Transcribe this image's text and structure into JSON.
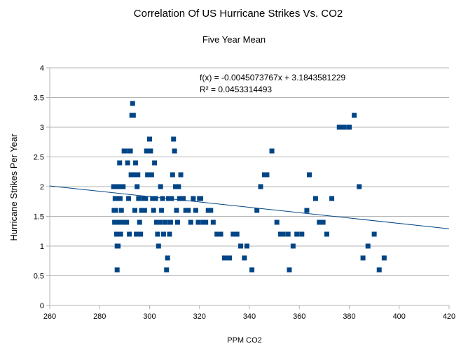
{
  "chart_data": {
    "type": "scatter",
    "title": "Correlation Of US Hurricane Strikes Vs. CO2",
    "subtitle": "Five Year Mean",
    "xlabel": "PPM CO2",
    "ylabel": "Hurricane Strikes Per Year",
    "xlim": [
      260,
      420
    ],
    "ylim": [
      0,
      4
    ],
    "x_ticks": [
      260,
      280,
      300,
      320,
      340,
      360,
      380,
      400,
      420
    ],
    "y_ticks": [
      0,
      0.5,
      1,
      1.5,
      2,
      2.5,
      3,
      3.5,
      4
    ],
    "x_tick_labels": [
      "260",
      "280",
      "300",
      "320",
      "340",
      "360",
      "380",
      "400",
      "420"
    ],
    "y_tick_labels": [
      "0",
      "0.5",
      "1",
      "1.5",
      "2",
      "2.5",
      "3",
      "3.5",
      "4"
    ],
    "grid": "horizontal",
    "legend": "none",
    "marker_color": "#004586",
    "trendline_color": "#004586",
    "trendline": {
      "slope": -0.0045073767,
      "intercept": 3.1843581229
    },
    "equation_label": "f(x) = -0.0045073767x + 3.1843581229",
    "r2_label": "R² = 0.0453314493",
    "points": [
      [
        285.6,
        2.0
      ],
      [
        285.8,
        1.6
      ],
      [
        286.0,
        1.4
      ],
      [
        286.2,
        1.8
      ],
      [
        286.4,
        1.6
      ],
      [
        286.6,
        2.0
      ],
      [
        286.8,
        1.2
      ],
      [
        287.0,
        1.0
      ],
      [
        287.0,
        0.6
      ],
      [
        287.2,
        1.8
      ],
      [
        287.4,
        1.0
      ],
      [
        287.6,
        1.4
      ],
      [
        287.8,
        2.0
      ],
      [
        288.0,
        2.4
      ],
      [
        288.2,
        1.8
      ],
      [
        288.4,
        1.2
      ],
      [
        288.7,
        1.6
      ],
      [
        289.0,
        1.4
      ],
      [
        289.4,
        2.0
      ],
      [
        289.8,
        2.6
      ],
      [
        290.3,
        2.6
      ],
      [
        290.8,
        1.4
      ],
      [
        291.2,
        2.4
      ],
      [
        291.6,
        1.8
      ],
      [
        291.9,
        1.2
      ],
      [
        292.3,
        2.6
      ],
      [
        292.6,
        2.2
      ],
      [
        292.9,
        3.2
      ],
      [
        293.2,
        3.4
      ],
      [
        293.5,
        3.2
      ],
      [
        293.8,
        2.2
      ],
      [
        294.1,
        1.6
      ],
      [
        294.4,
        2.4
      ],
      [
        294.7,
        1.2
      ],
      [
        295.0,
        2.0
      ],
      [
        295.3,
        2.2
      ],
      [
        295.6,
        1.8
      ],
      [
        296.0,
        1.4
      ],
      [
        296.4,
        1.2
      ],
      [
        296.8,
        1.6
      ],
      [
        297.2,
        1.6
      ],
      [
        297.6,
        1.8
      ],
      [
        298.0,
        1.6
      ],
      [
        298.4,
        1.8
      ],
      [
        298.8,
        2.6
      ],
      [
        299.2,
        2.2
      ],
      [
        299.6,
        2.6
      ],
      [
        300.0,
        2.8
      ],
      [
        300.4,
        2.6
      ],
      [
        300.8,
        2.2
      ],
      [
        301.2,
        1.8
      ],
      [
        301.6,
        1.6
      ],
      [
        302.0,
        2.4
      ],
      [
        302.4,
        1.8
      ],
      [
        302.8,
        1.4
      ],
      [
        303.2,
        1.2
      ],
      [
        303.6,
        1.0
      ],
      [
        304.0,
        1.4
      ],
      [
        304.4,
        2.0
      ],
      [
        304.8,
        1.6
      ],
      [
        305.2,
        1.8
      ],
      [
        305.6,
        1.2
      ],
      [
        306.0,
        1.4
      ],
      [
        306.4,
        1.4
      ],
      [
        306.8,
        0.6
      ],
      [
        307.2,
        0.8
      ],
      [
        307.6,
        1.8
      ],
      [
        308.0,
        1.2
      ],
      [
        308.4,
        1.4
      ],
      [
        308.8,
        1.8
      ],
      [
        309.2,
        2.2
      ],
      [
        309.6,
        2.8
      ],
      [
        310.0,
        2.6
      ],
      [
        310.4,
        2.0
      ],
      [
        310.8,
        1.6
      ],
      [
        311.2,
        1.4
      ],
      [
        311.6,
        2.0
      ],
      [
        312.0,
        1.8
      ],
      [
        312.5,
        2.2
      ],
      [
        313.5,
        1.8
      ],
      [
        314.5,
        1.6
      ],
      [
        315.5,
        1.6
      ],
      [
        316.5,
        1.4
      ],
      [
        317.5,
        1.8
      ],
      [
        318.5,
        1.6
      ],
      [
        319.5,
        1.4
      ],
      [
        320.0,
        1.8
      ],
      [
        320.5,
        1.8
      ],
      [
        321.5,
        1.4
      ],
      [
        322.5,
        1.4
      ],
      [
        323.5,
        1.6
      ],
      [
        324.5,
        1.6
      ],
      [
        325.5,
        1.4
      ],
      [
        327.0,
        1.2
      ],
      [
        328.5,
        1.2
      ],
      [
        330.0,
        0.8
      ],
      [
        331.0,
        0.8
      ],
      [
        332.0,
        0.8
      ],
      [
        333.5,
        1.2
      ],
      [
        335.0,
        1.2
      ],
      [
        336.5,
        1.0
      ],
      [
        338.0,
        0.8
      ],
      [
        339.0,
        1.0
      ],
      [
        341.0,
        0.6
      ],
      [
        343.0,
        1.6
      ],
      [
        344.5,
        2.0
      ],
      [
        346.0,
        2.2
      ],
      [
        347.0,
        2.2
      ],
      [
        349.0,
        2.6
      ],
      [
        351.0,
        1.4
      ],
      [
        352.5,
        1.2
      ],
      [
        353.5,
        1.2
      ],
      [
        355.5,
        1.2
      ],
      [
        356.0,
        0.6
      ],
      [
        357.5,
        1.0
      ],
      [
        359.0,
        1.2
      ],
      [
        361.0,
        1.2
      ],
      [
        363.0,
        1.6
      ],
      [
        364.0,
        2.2
      ],
      [
        366.5,
        1.8
      ],
      [
        368.0,
        1.4
      ],
      [
        369.5,
        1.4
      ],
      [
        371.0,
        1.2
      ],
      [
        373.0,
        1.8
      ],
      [
        376.0,
        3.0
      ],
      [
        377.0,
        3.0
      ],
      [
        378.0,
        3.0
      ],
      [
        380.0,
        3.0
      ],
      [
        382.0,
        3.2
      ],
      [
        384.0,
        2.0
      ],
      [
        385.5,
        0.8
      ],
      [
        387.5,
        1.0
      ],
      [
        390.0,
        1.2
      ],
      [
        392.0,
        0.6
      ],
      [
        394.0,
        0.8
      ]
    ]
  }
}
